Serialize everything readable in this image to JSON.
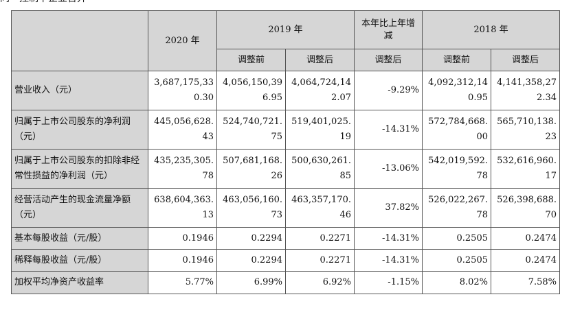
{
  "caption": "同一控制下企业合并",
  "header": {
    "col_2020": "2020 年",
    "col_2019": "2019 年",
    "col_change": "本年比上年增减",
    "col_2018": "2018 年",
    "before_adjust": "调整前",
    "after_adjust": "调整后",
    "after_adjust_change": "调整后"
  },
  "rows": [
    {
      "label": "营业收入（元）",
      "v2020": "3,687,175,330.30",
      "v2019_before": "4,056,150,396.95",
      "v2019_after": "4,064,724,142.07",
      "change": "-9.29%",
      "v2018_before": "4,092,312,140.95",
      "v2018_after": "4,141,358,272.34"
    },
    {
      "label": "归属于上市公司股东的净利润（元）",
      "v2020": "445,056,628.43",
      "v2019_before": "524,740,721.75",
      "v2019_after": "519,401,025.19",
      "change": "-14.31%",
      "v2018_before": "572,784,668.00",
      "v2018_after": "565,710,138.23"
    },
    {
      "label": "归属于上市公司股东的扣除非经常性损益的净利润（元）",
      "v2020": "435,235,305.78",
      "v2019_before": "507,681,168.26",
      "v2019_after": "500,630,261.85",
      "change": "-13.06%",
      "v2018_before": "542,019,592.78",
      "v2018_after": "532,616,960.17"
    },
    {
      "label": "经营活动产生的现金流量净额（元）",
      "v2020": "638,604,363.13",
      "v2019_before": "463,056,160.73",
      "v2019_after": "463,357,170.46",
      "change": "37.82%",
      "v2018_before": "526,022,267.78",
      "v2018_after": "526,398,688.70"
    },
    {
      "label": "基本每股收益（元/股）",
      "v2020": "0.1946",
      "v2019_before": "0.2294",
      "v2019_after": "0.2271",
      "change": "-14.31%",
      "v2018_before": "0.2505",
      "v2018_after": "0.2474"
    },
    {
      "label": "稀释每股收益（元/股）",
      "v2020": "0.1946",
      "v2019_before": "0.2294",
      "v2019_after": "0.2271",
      "change": "-14.31%",
      "v2018_before": "0.2505",
      "v2018_after": "0.2474"
    },
    {
      "label": "加权平均净资产收益率",
      "v2020": "5.77%",
      "v2019_before": "6.99%",
      "v2019_after": "6.92%",
      "change": "-1.15%",
      "v2018_before": "8.02%",
      "v2018_after": "7.58%"
    }
  ]
}
